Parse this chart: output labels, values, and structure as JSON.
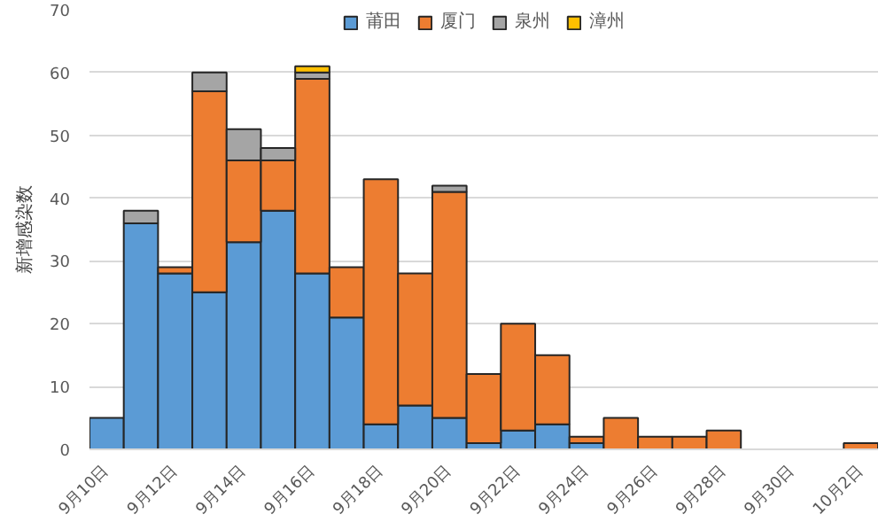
{
  "chart_data": {
    "type": "bar",
    "stacked": true,
    "ylabel": "新增感染数",
    "categories": [
      "9月10日",
      null,
      "9月12日",
      null,
      "9月14日",
      null,
      "9月16日",
      null,
      "9月18日",
      null,
      "9月20日",
      null,
      "9月22日",
      null,
      "9月24日",
      null,
      "9月26日",
      null,
      "9月28日",
      null,
      "9月30日",
      null,
      "10月2日"
    ],
    "series": [
      {
        "name": "莆田",
        "color": "#5b9bd5",
        "values": [
          5,
          36,
          28,
          25,
          33,
          38,
          28,
          21,
          4,
          7,
          5,
          1,
          3,
          4,
          1,
          0,
          0,
          0,
          0,
          0,
          0,
          0,
          0
        ]
      },
      {
        "name": "厦门",
        "color": "#ed7d31",
        "values": [
          0,
          0,
          1,
          32,
          13,
          8,
          31,
          8,
          39,
          21,
          36,
          11,
          17,
          11,
          1,
          5,
          2,
          2,
          3,
          0,
          0,
          0,
          1
        ]
      },
      {
        "name": "泉州",
        "color": "#a5a5a5",
        "values": [
          0,
          2,
          0,
          3,
          5,
          2,
          1,
          0,
          0,
          0,
          1,
          0,
          0,
          0,
          0,
          0,
          0,
          0,
          0,
          0,
          0,
          0,
          0
        ]
      },
      {
        "name": "漳州",
        "color": "#ffc000",
        "values": [
          0,
          0,
          0,
          0,
          0,
          0,
          1,
          0,
          0,
          0,
          0,
          0,
          0,
          0,
          0,
          0,
          0,
          0,
          0,
          0,
          0,
          0,
          0
        ]
      }
    ],
    "ylim": [
      0,
      70
    ],
    "yticks": [
      0,
      10,
      20,
      30,
      40,
      50,
      60,
      70
    ],
    "grid": "y",
    "legend": "top"
  }
}
